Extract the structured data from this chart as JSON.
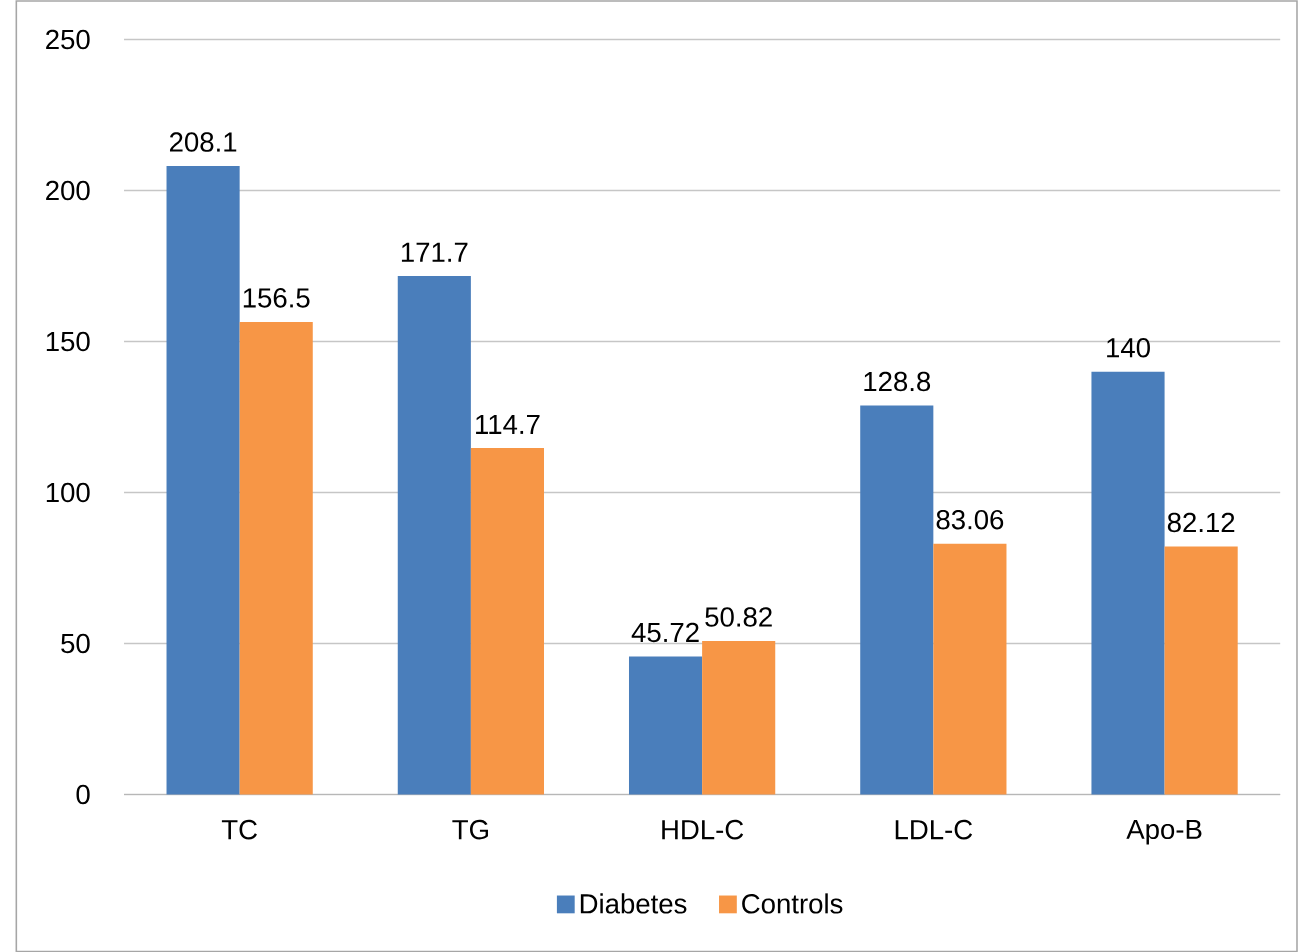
{
  "chart_data": {
    "type": "bar",
    "categories": [
      "TC",
      "TG",
      "HDL-C",
      "LDL-C",
      "Apo-B"
    ],
    "series": [
      {
        "name": "Diabetes",
        "color": "#4a7ebb",
        "values": [
          208.1,
          171.7,
          45.72,
          128.8,
          140
        ]
      },
      {
        "name": "Controls",
        "color": "#f79646",
        "values": [
          156.5,
          114.7,
          50.82,
          83.06,
          82.12
        ]
      }
    ],
    "ylim": [
      0,
      250
    ],
    "yticks": [
      0,
      50,
      100,
      150,
      200,
      250
    ],
    "grid": "y",
    "legend": "bottom",
    "data_labels": true
  }
}
